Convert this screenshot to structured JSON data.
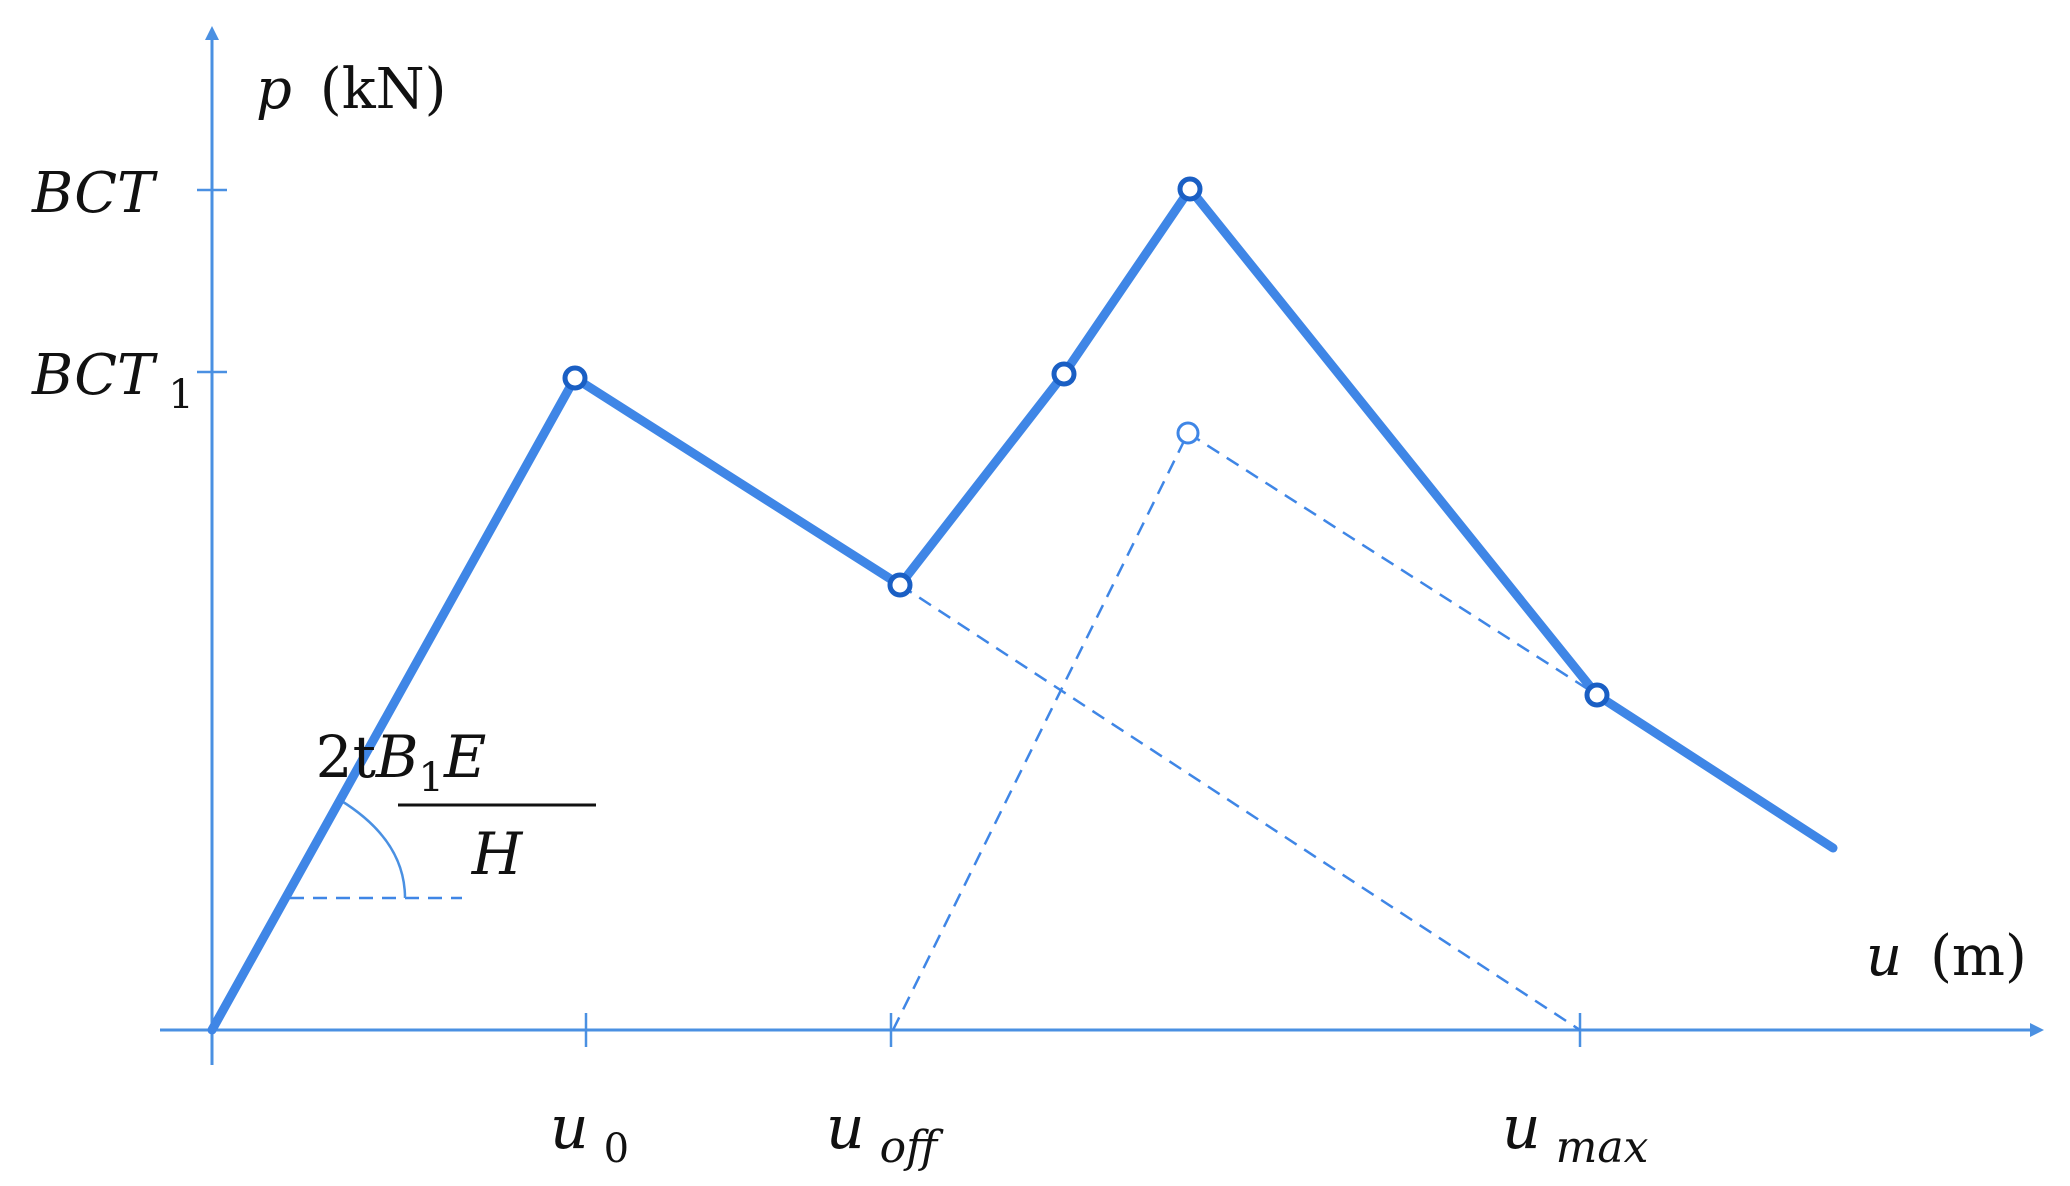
{
  "y_axis": {
    "var": "p",
    "unit": "(kN)"
  },
  "x_axis": {
    "var": "u",
    "unit": "(m)"
  },
  "y_ticks": {
    "bct": "BCT",
    "bct1_main": "BCT",
    "bct1_sub": "1"
  },
  "x_ticks": {
    "u0_main": "u",
    "u0_sub": "0",
    "uoff_main": "u",
    "uoff_sub": "off",
    "umax_main": "u",
    "umax_sub": "max"
  },
  "slope": {
    "num_a": "2t",
    "num_b": "B",
    "num_sub": "1",
    "num_c": "E",
    "den": "H"
  },
  "colors": {
    "curve": "#3f86e6",
    "node_stroke": "#1a5fc4",
    "axis": "#4a90e2",
    "text": "#111111"
  }
}
